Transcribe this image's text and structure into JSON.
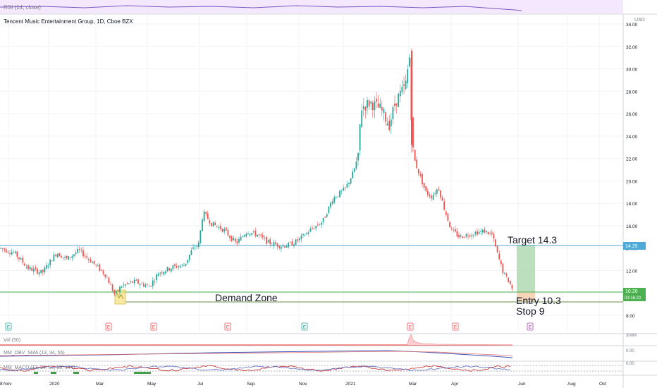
{
  "rsi_label": "RSI (14, close)",
  "chart": {
    "title": "Tencent Music Entertainment Group, 1D, Cboe BZX",
    "currency": "USD",
    "price_ticks": [
      "34.00",
      "32.00",
      "30.00",
      "28.00",
      "26.00",
      "24.00",
      "22.00",
      "20.00",
      "18.00",
      "16.00",
      "14.00",
      "12.00",
      "10.00",
      "8.00"
    ],
    "price_tag_1425": "14.25",
    "price_tag_last": "10.20",
    "price_tag_timer": "03:16:22",
    "annotations": {
      "target": "Target 14.3",
      "entry": "Entry 10.3",
      "stop": "Stop  9",
      "demand_zone": "Demand Zone"
    },
    "event_markers": [
      "E",
      "E",
      "E",
      "E",
      "E",
      "E",
      "E",
      "E"
    ],
    "colors": {
      "up": "#26a69a",
      "down": "#ef5350",
      "target_zone": "#a5d6a7",
      "entry_zone": "#f5cba7",
      "demand_line": "#4caf50",
      "target_line": "#4fa9d6"
    }
  },
  "vol_panel": {
    "label": "Vol (50)",
    "tick": "300M"
  },
  "obv_panel": {
    "label": "MM_OBV_SMA (13, 34, 55)",
    "tick": "0.00"
  },
  "macd_panel": {
    "label": "MM_MACD (13, 34, 55, 89, 144)",
    "tick": "0.00"
  },
  "time_axis": [
    "Nov",
    "2020",
    "Mar",
    "May",
    "Jul",
    "Sep",
    "Nov",
    "2021",
    "Mar",
    "Apr",
    "Jun",
    "Aug",
    "Oct",
    "8"
  ],
  "chart_data": {
    "type": "candlestick",
    "title": "Tencent Music Entertainment Group, 1D, Cboe BZX",
    "ylabel": "USD",
    "ylim": [
      8,
      34
    ],
    "x": [
      "Nov",
      "2020",
      "Mar",
      "May",
      "Jul",
      "Sep",
      "Nov",
      "2021",
      "Mar",
      "Apr",
      "Jun"
    ],
    "close_approx": [
      13.8,
      13.2,
      10.3,
      11.0,
      17.2,
      14.3,
      14.5,
      27.0,
      29.5,
      18.5,
      11.0
    ],
    "levels": {
      "target": 14.3,
      "entry": 10.3,
      "stop": 9,
      "resistance": 14.25,
      "last": 10.2
    }
  }
}
